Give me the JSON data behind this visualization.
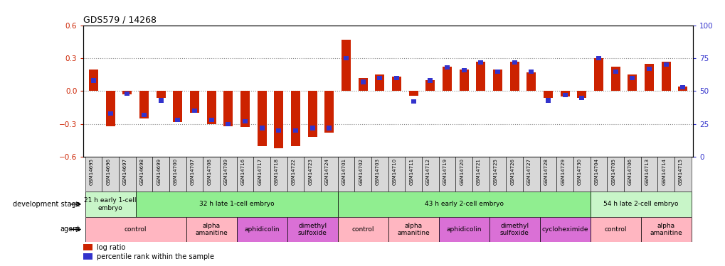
{
  "title": "GDS579 / 14268",
  "samples": [
    "GSM14695",
    "GSM14696",
    "GSM14697",
    "GSM14698",
    "GSM14699",
    "GSM14700",
    "GSM14707",
    "GSM14708",
    "GSM14709",
    "GSM14716",
    "GSM14717",
    "GSM14718",
    "GSM14722",
    "GSM14723",
    "GSM14724",
    "GSM14701",
    "GSM14702",
    "GSM14703",
    "GSM14710",
    "GSM14711",
    "GSM14712",
    "GSM14719",
    "GSM14720",
    "GSM14721",
    "GSM14725",
    "GSM14726",
    "GSM14727",
    "GSM14728",
    "GSM14729",
    "GSM14730",
    "GSM14704",
    "GSM14705",
    "GSM14706",
    "GSM14713",
    "GSM14714",
    "GSM14715"
  ],
  "log_ratio": [
    0.2,
    -0.32,
    -0.03,
    -0.25,
    -0.06,
    -0.28,
    -0.2,
    -0.3,
    -0.32,
    -0.33,
    -0.5,
    -0.52,
    -0.5,
    -0.42,
    -0.38,
    0.47,
    0.12,
    0.15,
    0.13,
    -0.04,
    0.1,
    0.22,
    0.2,
    0.27,
    0.2,
    0.27,
    0.17,
    -0.06,
    -0.05,
    -0.06,
    0.3,
    0.22,
    0.15,
    0.25,
    0.27,
    0.04
  ],
  "percentile": [
    58,
    33,
    48,
    32,
    43,
    28,
    35,
    28,
    25,
    27,
    22,
    20,
    20,
    22,
    22,
    75,
    57,
    60,
    60,
    42,
    58,
    68,
    66,
    72,
    65,
    72,
    65,
    43,
    47,
    45,
    75,
    65,
    60,
    67,
    70,
    53
  ],
  "dev_stage_groups": [
    {
      "label": "21 h early 1-cell\nembryo",
      "start": 0,
      "end": 3,
      "color": "#c8f5c8"
    },
    {
      "label": "32 h late 1-cell embryo",
      "start": 3,
      "end": 15,
      "color": "#90ee90"
    },
    {
      "label": "43 h early 2-cell embryo",
      "start": 15,
      "end": 30,
      "color": "#90ee90"
    },
    {
      "label": "54 h late 2-cell embryo",
      "start": 30,
      "end": 36,
      "color": "#c8f5c8"
    }
  ],
  "agent_groups": [
    {
      "label": "control",
      "start": 0,
      "end": 6,
      "color": "#ffb6c1"
    },
    {
      "label": "alpha\namanitine",
      "start": 6,
      "end": 9,
      "color": "#ffb6c1"
    },
    {
      "label": "aphidicolin",
      "start": 9,
      "end": 12,
      "color": "#da70d6"
    },
    {
      "label": "dimethyl\nsulfoxide",
      "start": 12,
      "end": 15,
      "color": "#da70d6"
    },
    {
      "label": "control",
      "start": 15,
      "end": 18,
      "color": "#ffb6c1"
    },
    {
      "label": "alpha\namanitine",
      "start": 18,
      "end": 21,
      "color": "#ffb6c1"
    },
    {
      "label": "aphidicolin",
      "start": 21,
      "end": 24,
      "color": "#da70d6"
    },
    {
      "label": "dimethyl\nsulfoxide",
      "start": 24,
      "end": 27,
      "color": "#da70d6"
    },
    {
      "label": "cycloheximide",
      "start": 27,
      "end": 30,
      "color": "#da70d6"
    },
    {
      "label": "control",
      "start": 30,
      "end": 33,
      "color": "#ffb6c1"
    },
    {
      "label": "alpha\namanitine",
      "start": 33,
      "end": 36,
      "color": "#ffb6c1"
    }
  ],
  "ylim_left": [
    -0.6,
    0.6
  ],
  "ylim_right": [
    0,
    100
  ],
  "yticks_left": [
    -0.6,
    -0.3,
    0.0,
    0.3,
    0.6
  ],
  "yticks_right": [
    0,
    25,
    50,
    75,
    100
  ],
  "bar_color_log": "#cc2200",
  "bar_color_pct": "#3333cc",
  "bg_color": "#ffffff",
  "xticklabel_bg": "#d8d8d8"
}
